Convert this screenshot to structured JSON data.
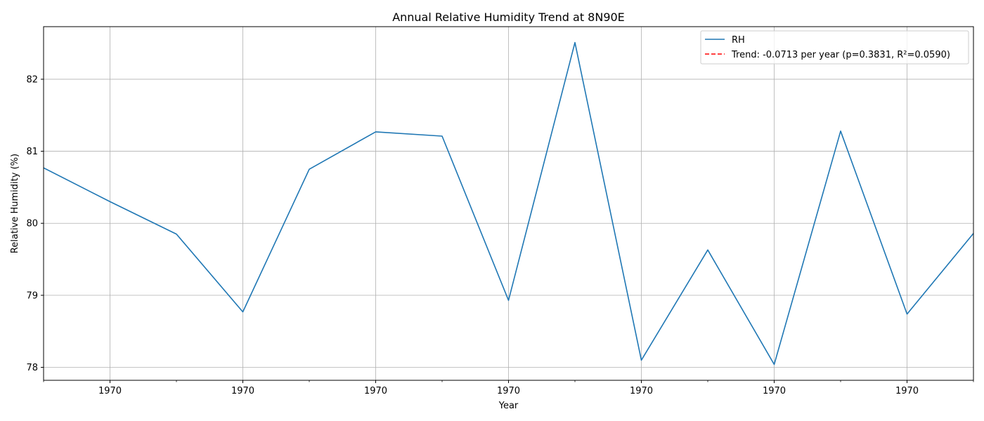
{
  "chart_data": {
    "type": "line",
    "title": "Annual Relative Humidity Trend at 8N90E",
    "xlabel": "Year",
    "ylabel": "Relative Humidity (%)",
    "x_tick_labels": [
      "1970",
      "1970",
      "1970",
      "1970",
      "1970",
      "1970",
      "1970"
    ],
    "y_ticks": [
      78,
      79,
      80,
      81,
      82
    ],
    "ylim": [
      77.82,
      82.73
    ],
    "grid": true,
    "legend_position": "top-right",
    "series": [
      {
        "name": "RH",
        "color": "#1f77b4",
        "style": "solid",
        "values": [
          80.77,
          80.3,
          79.85,
          78.77,
          80.75,
          81.27,
          81.21,
          78.93,
          82.51,
          78.1,
          79.63,
          78.04,
          81.28,
          78.74,
          79.86
        ]
      }
    ],
    "trend": {
      "name": "Trend: -0.0713 per year (p=0.3831, R²=0.0590)",
      "color": "#ff0000",
      "style": "dashed"
    },
    "x_tick_rule": "major tick labels at every second point starting from the second point; minor ticks between"
  }
}
